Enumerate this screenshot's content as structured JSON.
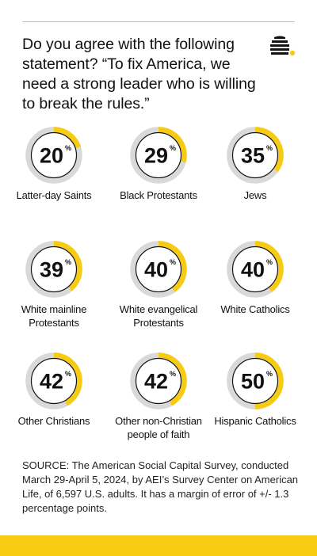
{
  "title": "Do you agree with the following statement? “To fix America, we need a strong leader who is willing to break the rules.”",
  "logo_icon": "beehive-logo-icon",
  "colors": {
    "accent": "#F7CB12",
    "track": "#D9D9D9",
    "ring": "#111111",
    "text": "#111111"
  },
  "chart_data": {
    "type": "donut-grid",
    "unit": "%",
    "items": [
      {
        "label": "Latter-day Saints",
        "value": 20
      },
      {
        "label": "Black Protestants",
        "value": 29
      },
      {
        "label": "Jews",
        "value": 35
      },
      {
        "label": "White mainline Protestants",
        "value": 39
      },
      {
        "label": "White evangelical Protestants",
        "value": 40
      },
      {
        "label": "White Catholics",
        "value": 40
      },
      {
        "label": "Other Christians",
        "value": 42
      },
      {
        "label": "Other non-Christian people of faith",
        "value": 42
      },
      {
        "label": "Hispanic Catholics",
        "value": 50
      }
    ]
  },
  "source": "SOURCE: The American Social Capital Survey, conducted March 29-April 5, 2024, by AEI’s Survey Center on American Life, of 6,597 U.S. adults. It has a margin of error of +/- 1.3 percentage points."
}
